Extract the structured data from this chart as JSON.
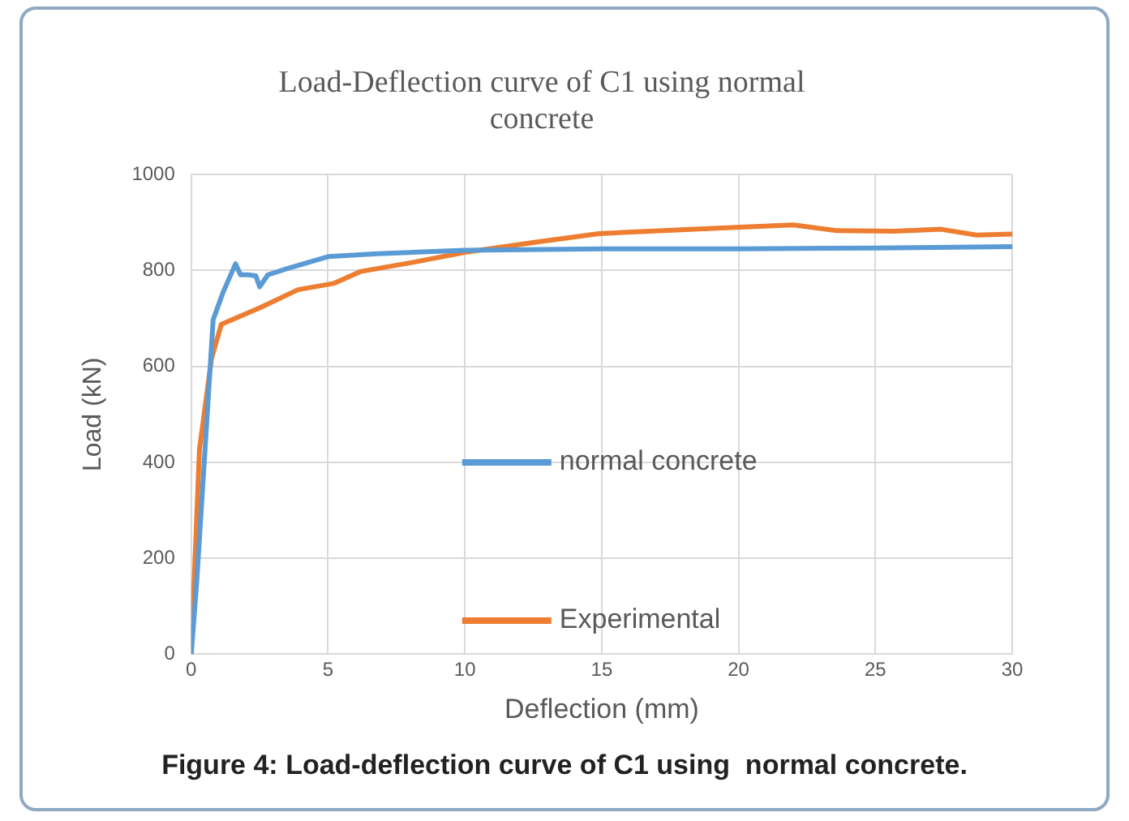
{
  "chart_data": {
    "type": "line",
    "title": "Load-Deflection curve of C1 using normal concrete",
    "xlabel": "Deflection (mm)",
    "ylabel": "Load (kN)",
    "xlim": [
      0,
      30
    ],
    "xticks": [
      0,
      5,
      10,
      15,
      20,
      25,
      30
    ],
    "ylim": [
      0,
      1000
    ],
    "yticks": [
      0,
      200,
      400,
      600,
      800,
      1000
    ],
    "grid": true,
    "legend": "right",
    "marker": "none",
    "line_style": "solid",
    "annotations": [
      "Figure 4: Load-deflection curve of C1 using  normal concrete."
    ],
    "series": [
      {
        "name": "normal concrete",
        "color": "#5b9bd5",
        "x": [
          0,
          0.2,
          0.8,
          1.16,
          1.62,
          1.8,
          2.1,
          2.36,
          2.5,
          2.8,
          3.5,
          5,
          6.8,
          10,
          15,
          20,
          25,
          30
        ],
        "values": [
          0,
          150,
          697,
          754,
          814,
          791,
          791,
          789,
          766,
          791,
          804,
          829,
          835,
          842,
          845,
          845,
          847,
          850
        ]
      },
      {
        "name": "Experimental",
        "color": "#ed7d31",
        "x": [
          0,
          0.3,
          0.74,
          1.1,
          2.5,
          3.9,
          5.2,
          6.2,
          8.1,
          10,
          12.7,
          14.9,
          19.9,
          22,
          23.6,
          25.7,
          27.4,
          28.7,
          30
        ],
        "values": [
          0,
          427,
          616,
          688,
          722,
          760,
          773,
          798,
          817,
          838,
          860,
          877,
          890,
          895,
          883,
          882,
          886,
          874,
          876
        ]
      }
    ]
  }
}
